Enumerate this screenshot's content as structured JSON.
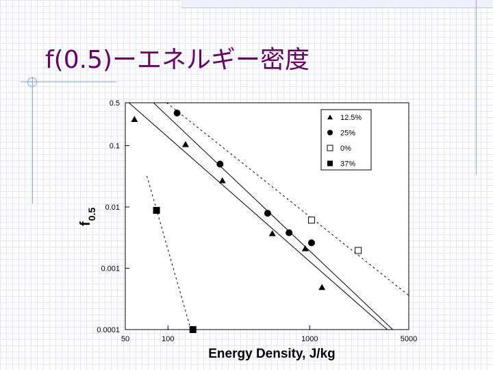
{
  "slide": {
    "title": "f(0.5)ーエネルギー密度"
  },
  "colors": {
    "title": "#660066",
    "grid": "#e2e7f5",
    "decor_line": "#8ea4d8"
  },
  "chart_data": {
    "type": "scatter",
    "title": "",
    "xlabel": "Energy Density,  J/kg",
    "ylabel_main": "f",
    "ylabel_sub": "0.5",
    "x_scale": "log",
    "y_scale": "log",
    "xlim": [
      50,
      5000
    ],
    "ylim": [
      0.0001,
      0.5
    ],
    "x_ticks": [
      {
        "value": 50,
        "label": "50"
      },
      {
        "value": 100,
        "label": "100"
      },
      {
        "value": 1000,
        "label": "1000"
      },
      {
        "value": 5000,
        "label": "5000"
      }
    ],
    "y_ticks": [
      {
        "value": 0.5,
        "label": "0.5"
      },
      {
        "value": 0.1,
        "label": "0.1"
      },
      {
        "value": 0.01,
        "label": "0.01"
      },
      {
        "value": 0.001,
        "label": "0.001"
      },
      {
        "value": 0.0001,
        "label": "0.0001"
      }
    ],
    "legend_position": "top-right",
    "series": [
      {
        "name": "12.5%",
        "marker": "triangle",
        "points": [
          {
            "x": 58,
            "y": 0.27
          },
          {
            "x": 133,
            "y": 0.105
          },
          {
            "x": 242,
            "y": 0.027
          },
          {
            "x": 545,
            "y": 0.0037
          },
          {
            "x": 930,
            "y": 0.0021
          },
          {
            "x": 1220,
            "y": 0.00049
          }
        ]
      },
      {
        "name": "25%",
        "marker": "circle",
        "points": [
          {
            "x": 116,
            "y": 0.34
          },
          {
            "x": 233,
            "y": 0.05
          },
          {
            "x": 505,
            "y": 0.0079
          },
          {
            "x": 715,
            "y": 0.0038
          },
          {
            "x": 1030,
            "y": 0.0026
          }
        ]
      },
      {
        "name": "0%",
        "marker": "open-square",
        "points": [
          {
            "x": 1030,
            "y": 0.0061
          },
          {
            "x": 2200,
            "y": 0.00195
          }
        ]
      },
      {
        "name": "37%",
        "marker": "square",
        "points": [
          {
            "x": 83,
            "y": 0.0088
          },
          {
            "x": 150,
            "y": 0.0001
          }
        ]
      }
    ],
    "fit_lines": [
      {
        "series": "12.5%",
        "style": "solid",
        "from": {
          "x": 53,
          "y": 0.5
        },
        "to": {
          "x": 3530,
          "y": 0.0001
        }
      },
      {
        "series": "25%",
        "style": "solid",
        "from": {
          "x": 79,
          "y": 0.5
        },
        "to": {
          "x": 3850,
          "y": 0.0001
        }
      },
      {
        "series": "0%",
        "style": "dashed",
        "from": {
          "x": 98,
          "y": 0.5
        },
        "to": {
          "x": 5000,
          "y": 0.00036
        }
      },
      {
        "series": "37%",
        "style": "dashed",
        "from": {
          "x": 71,
          "y": 0.032
        },
        "to": {
          "x": 145,
          "y": 0.0001
        }
      }
    ]
  }
}
